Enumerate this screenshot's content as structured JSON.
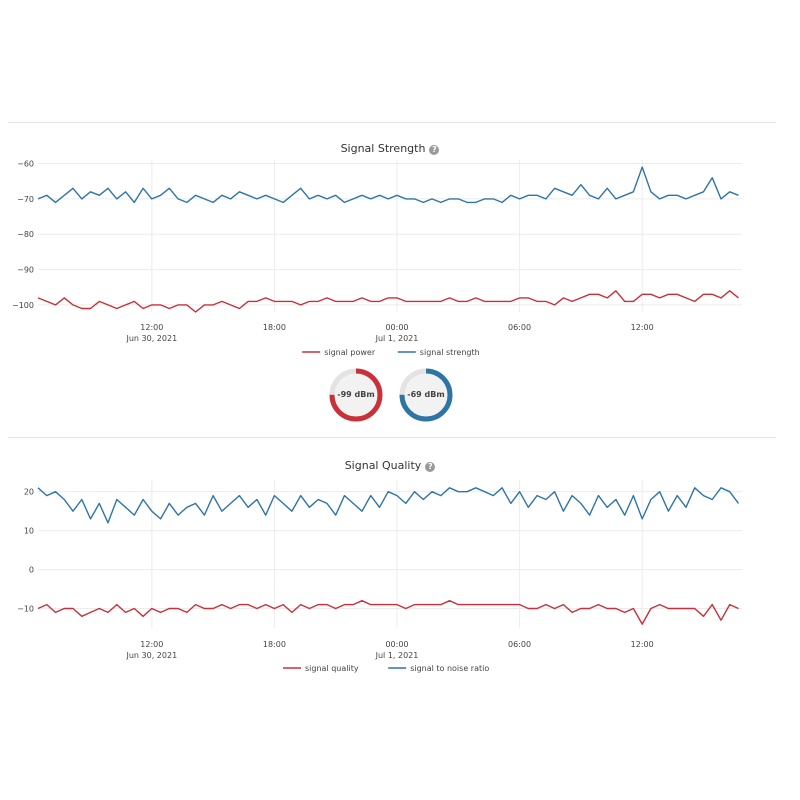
{
  "colors": {
    "red": "#c9303a",
    "blue": "#2e75a6",
    "gauge_track": "#e3e3e3",
    "gauge_fill_bg": "#f2f2f2"
  },
  "gauges": [
    {
      "label": "-99 dBm",
      "color": "#c9303a",
      "fraction": 0.75
    },
    {
      "label": "-69 dBm",
      "color": "#2e75a6",
      "fraction": 0.75
    }
  ],
  "chart_data": [
    {
      "type": "line",
      "title": "Signal Strength",
      "help_icon": "question-circle-icon",
      "yticks": [
        -60,
        -70,
        -80,
        -90,
        -100
      ],
      "ytick_labels": [
        "−60",
        "−70",
        "−80",
        "−90",
        "−100"
      ],
      "ylim": [
        -102,
        -59
      ],
      "xlim": [
        0,
        40.2
      ],
      "xticks": [
        {
          "x": 6.5,
          "line1": "12:00",
          "line2": "Jun 30, 2021"
        },
        {
          "x": 13.5,
          "line1": "18:00",
          "line2": ""
        },
        {
          "x": 20.5,
          "line1": "00:00",
          "line2": "Jul 1, 2021"
        },
        {
          "x": 27.5,
          "line1": "06:00",
          "line2": ""
        },
        {
          "x": 34.5,
          "line1": "12:00",
          "line2": ""
        }
      ],
      "x_unit": "hours since Jun 30, 2021 05:30",
      "grid": true,
      "legend": "bottom-center",
      "series": [
        {
          "name": "signal power",
          "color": "#c9303a",
          "x": [
            0,
            0.5,
            1,
            1.5,
            2,
            2.5,
            3,
            3.5,
            4,
            4.5,
            5,
            5.5,
            6,
            6.5,
            7,
            7.5,
            8,
            8.5,
            9,
            9.5,
            10,
            10.5,
            11,
            11.5,
            12,
            12.5,
            13,
            13.5,
            14,
            14.5,
            15,
            15.5,
            16,
            16.5,
            17,
            17.5,
            18,
            18.5,
            19,
            19.5,
            20,
            20.5,
            21,
            21.5,
            22,
            22.5,
            23,
            23.5,
            24,
            24.5,
            25,
            25.5,
            26,
            26.5,
            27,
            27.5,
            28,
            28.5,
            29,
            29.5,
            30,
            30.5,
            31,
            31.5,
            32,
            32.5,
            33,
            33.5,
            34,
            34.5,
            35,
            35.5,
            36,
            36.5,
            37,
            37.5,
            38,
            38.5,
            39,
            39.5,
            40
          ],
          "values": [
            -98,
            -99,
            -100,
            -98,
            -100,
            -101,
            -101,
            -99,
            -100,
            -101,
            -100,
            -99,
            -101,
            -100,
            -100,
            -101,
            -100,
            -100,
            -102,
            -100,
            -100,
            -99,
            -100,
            -101,
            -99,
            -99,
            -98,
            -99,
            -99,
            -99,
            -100,
            -99,
            -99,
            -98,
            -99,
            -99,
            -99,
            -98,
            -99,
            -99,
            -98,
            -98,
            -99,
            -99,
            -99,
            -99,
            -99,
            -98,
            -99,
            -99,
            -98,
            -99,
            -99,
            -99,
            -99,
            -98,
            -98,
            -99,
            -99,
            -100,
            -98,
            -99,
            -98,
            -97,
            -97,
            -98,
            -96,
            -99,
            -99,
            -97,
            -97,
            -98,
            -97,
            -97,
            -98,
            -99,
            -97,
            -97,
            -98,
            -96,
            -98
          ]
        },
        {
          "name": "signal strength",
          "color": "#2e75a6",
          "x": [
            0,
            0.5,
            1,
            1.5,
            2,
            2.5,
            3,
            3.5,
            4,
            4.5,
            5,
            5.5,
            6,
            6.5,
            7,
            7.5,
            8,
            8.5,
            9,
            9.5,
            10,
            10.5,
            11,
            11.5,
            12,
            12.5,
            13,
            13.5,
            14,
            14.5,
            15,
            15.5,
            16,
            16.5,
            17,
            17.5,
            18,
            18.5,
            19,
            19.5,
            20,
            20.5,
            21,
            21.5,
            22,
            22.5,
            23,
            23.5,
            24,
            24.5,
            25,
            25.5,
            26,
            26.5,
            27,
            27.5,
            28,
            28.5,
            29,
            29.5,
            30,
            30.5,
            31,
            31.5,
            32,
            32.5,
            33,
            33.5,
            34,
            34.5,
            35,
            35.5,
            36,
            36.5,
            37,
            37.5,
            38,
            38.5,
            39,
            39.5,
            40
          ],
          "values": [
            -70,
            -69,
            -71,
            -69,
            -67,
            -70,
            -68,
            -69,
            -67,
            -70,
            -68,
            -71,
            -67,
            -70,
            -69,
            -67,
            -70,
            -71,
            -69,
            -70,
            -71,
            -69,
            -70,
            -68,
            -69,
            -70,
            -69,
            -70,
            -71,
            -69,
            -67,
            -70,
            -69,
            -70,
            -69,
            -71,
            -70,
            -69,
            -70,
            -69,
            -70,
            -69,
            -70,
            -70,
            -71,
            -70,
            -71,
            -70,
            -70,
            -71,
            -71,
            -70,
            -70,
            -71,
            -69,
            -70,
            -69,
            -69,
            -70,
            -67,
            -68,
            -69,
            -66,
            -69,
            -70,
            -67,
            -70,
            -69,
            -68,
            -61,
            -68,
            -70,
            -69,
            -69,
            -70,
            -69,
            -68,
            -64,
            -70,
            -68,
            -69
          ]
        }
      ]
    },
    {
      "type": "line",
      "title": "Signal Quality",
      "help_icon": "question-circle-icon",
      "yticks": [
        20,
        10,
        0,
        -10
      ],
      "ytick_labels": [
        "20",
        "10",
        "0",
        "−10"
      ],
      "ylim": [
        -15,
        23
      ],
      "xlim": [
        0,
        40.2
      ],
      "xticks": [
        {
          "x": 6.5,
          "line1": "12:00",
          "line2": "Jun 30, 2021"
        },
        {
          "x": 13.5,
          "line1": "18:00",
          "line2": ""
        },
        {
          "x": 20.5,
          "line1": "00:00",
          "line2": "Jul 1, 2021"
        },
        {
          "x": 27.5,
          "line1": "06:00",
          "line2": ""
        },
        {
          "x": 34.5,
          "line1": "12:00",
          "line2": ""
        }
      ],
      "x_unit": "hours since Jun 30, 2021 05:30",
      "grid": true,
      "legend": "bottom-center",
      "series": [
        {
          "name": "signal quality",
          "color": "#c9303a",
          "x": [
            0,
            0.5,
            1,
            1.5,
            2,
            2.5,
            3,
            3.5,
            4,
            4.5,
            5,
            5.5,
            6,
            6.5,
            7,
            7.5,
            8,
            8.5,
            9,
            9.5,
            10,
            10.5,
            11,
            11.5,
            12,
            12.5,
            13,
            13.5,
            14,
            14.5,
            15,
            15.5,
            16,
            16.5,
            17,
            17.5,
            18,
            18.5,
            19,
            19.5,
            20,
            20.5,
            21,
            21.5,
            22,
            22.5,
            23,
            23.5,
            24,
            24.5,
            25,
            25.5,
            26,
            26.5,
            27,
            27.5,
            28,
            28.5,
            29,
            29.5,
            30,
            30.5,
            31,
            31.5,
            32,
            32.5,
            33,
            33.5,
            34,
            34.5,
            35,
            35.5,
            36,
            36.5,
            37,
            37.5,
            38,
            38.5,
            39,
            39.5,
            40
          ],
          "values": [
            -10,
            -9,
            -11,
            -10,
            -10,
            -12,
            -11,
            -10,
            -11,
            -9,
            -11,
            -10,
            -12,
            -10,
            -11,
            -10,
            -10,
            -11,
            -9,
            -10,
            -10,
            -9,
            -10,
            -9,
            -9,
            -10,
            -9,
            -10,
            -9,
            -11,
            -9,
            -10,
            -9,
            -9,
            -10,
            -9,
            -9,
            -8,
            -9,
            -9,
            -9,
            -9,
            -10,
            -9,
            -9,
            -9,
            -9,
            -8,
            -9,
            -9,
            -9,
            -9,
            -9,
            -9,
            -9,
            -9,
            -10,
            -10,
            -9,
            -10,
            -9,
            -11,
            -10,
            -10,
            -9,
            -10,
            -10,
            -11,
            -10,
            -14,
            -10,
            -9,
            -10,
            -10,
            -10,
            -10,
            -12,
            -9,
            -13,
            -9,
            -10
          ]
        },
        {
          "name": "signal to noise ratio",
          "color": "#2e75a6",
          "x": [
            0,
            0.5,
            1,
            1.5,
            2,
            2.5,
            3,
            3.5,
            4,
            4.5,
            5,
            5.5,
            6,
            6.5,
            7,
            7.5,
            8,
            8.5,
            9,
            9.5,
            10,
            10.5,
            11,
            11.5,
            12,
            12.5,
            13,
            13.5,
            14,
            14.5,
            15,
            15.5,
            16,
            16.5,
            17,
            17.5,
            18,
            18.5,
            19,
            19.5,
            20,
            20.5,
            21,
            21.5,
            22,
            22.5,
            23,
            23.5,
            24,
            24.5,
            25,
            25.5,
            26,
            26.5,
            27,
            27.5,
            28,
            28.5,
            29,
            29.5,
            30,
            30.5,
            31,
            31.5,
            32,
            32.5,
            33,
            33.5,
            34,
            34.5,
            35,
            35.5,
            36,
            36.5,
            37,
            37.5,
            38,
            38.5,
            39,
            39.5,
            40
          ],
          "values": [
            21,
            19,
            20,
            18,
            15,
            18,
            13,
            17,
            12,
            18,
            16,
            14,
            18,
            15,
            13,
            17,
            14,
            16,
            17,
            14,
            19,
            15,
            17,
            19,
            16,
            18,
            14,
            19,
            17,
            15,
            19,
            16,
            18,
            17,
            14,
            19,
            17,
            15,
            19,
            16,
            20,
            19,
            17,
            20,
            18,
            20,
            19,
            21,
            20,
            20,
            21,
            20,
            19,
            21,
            17,
            20,
            16,
            19,
            18,
            20,
            15,
            19,
            17,
            14,
            19,
            16,
            18,
            14,
            19,
            13,
            18,
            20,
            15,
            19,
            16,
            21,
            19,
            18,
            21,
            20,
            17
          ]
        }
      ]
    }
  ]
}
